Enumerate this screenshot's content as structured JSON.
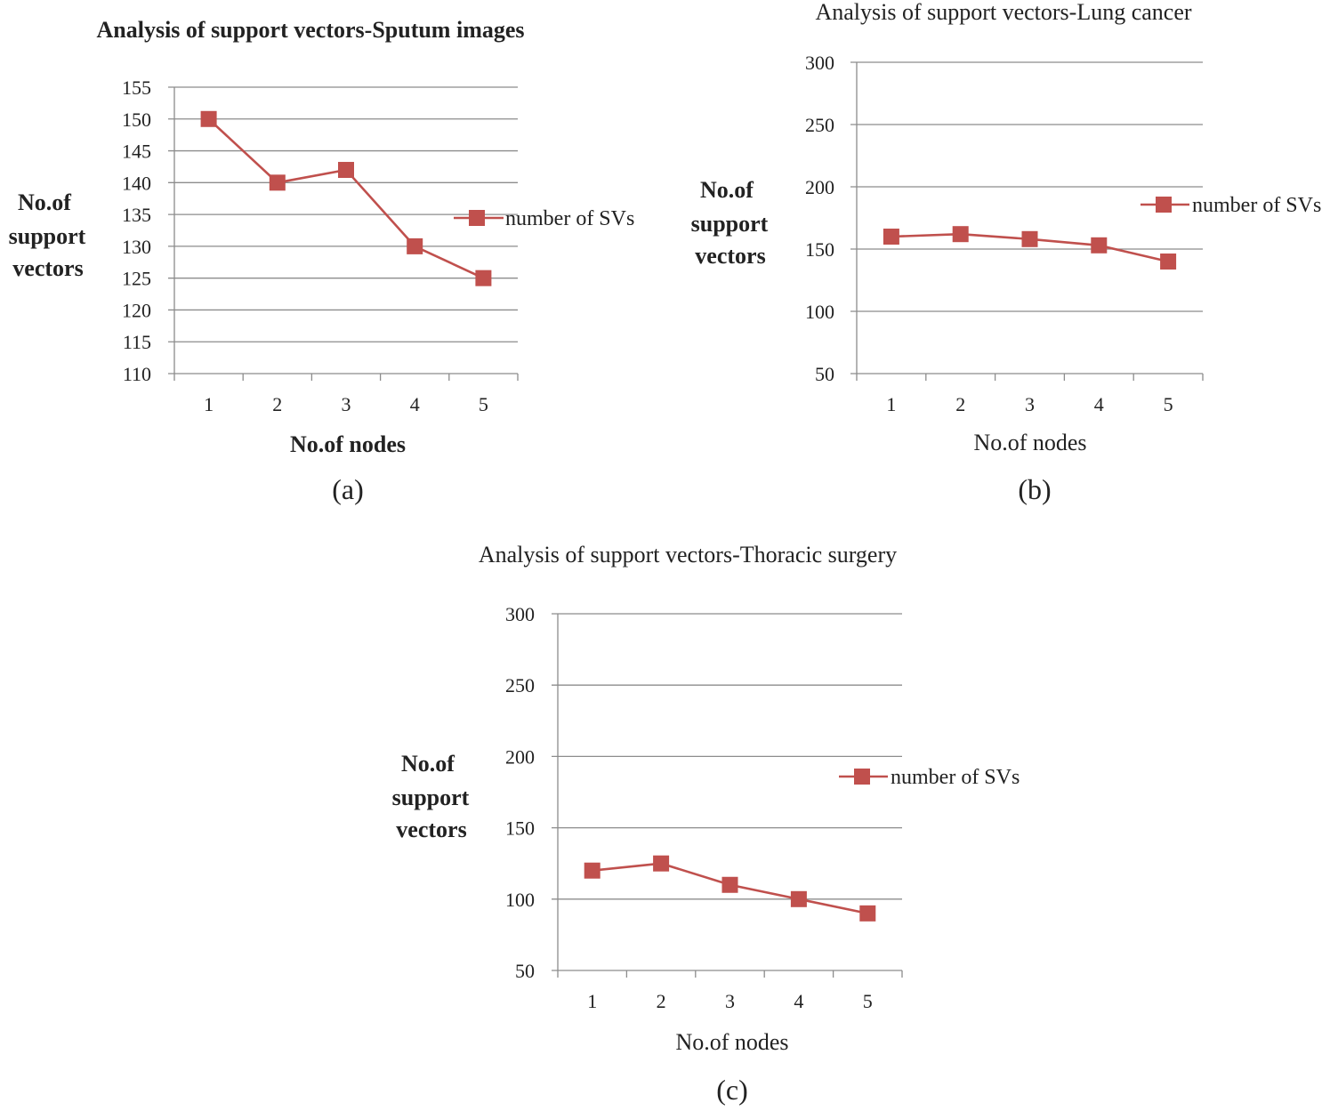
{
  "colors": {
    "series": "#c0504d",
    "grid": "#8c8c8c",
    "text": "#222222"
  },
  "chart_data": [
    {
      "type": "line",
      "panel": "a",
      "caption": "(a)",
      "title": "Analysis of support vectors-Sputum images",
      "xlabel": "No.of nodes",
      "ylabel_lines": [
        "No.of",
        "support",
        "vectors"
      ],
      "categories": [
        "1",
        "2",
        "3",
        "4",
        "5"
      ],
      "ylim": [
        110,
        155
      ],
      "ystep": 5,
      "series": [
        {
          "name": "number of SVs",
          "values": [
            150,
            140,
            142,
            130,
            125
          ]
        }
      ]
    },
    {
      "type": "line",
      "panel": "b",
      "caption": "(b)",
      "title": "Analysis of support vectors-Lung cancer",
      "xlabel": "No.of nodes",
      "ylabel_lines": [
        "No.of",
        "support",
        "vectors"
      ],
      "categories": [
        "1",
        "2",
        "3",
        "4",
        "5"
      ],
      "ylim": [
        50,
        300
      ],
      "ystep": 50,
      "series": [
        {
          "name": "number of SVs",
          "values": [
            160,
            162,
            158,
            153,
            140
          ]
        }
      ]
    },
    {
      "type": "line",
      "panel": "c",
      "caption": "(c)",
      "title": "Analysis of support vectors-Thoracic surgery",
      "xlabel": "No.of nodes",
      "ylabel_lines": [
        "No.of",
        "support",
        "vectors"
      ],
      "categories": [
        "1",
        "2",
        "3",
        "4",
        "5"
      ],
      "ylim": [
        50,
        300
      ],
      "ystep": 50,
      "series": [
        {
          "name": "number of SVs",
          "values": [
            120,
            125,
            110,
            100,
            90
          ]
        }
      ]
    }
  ]
}
